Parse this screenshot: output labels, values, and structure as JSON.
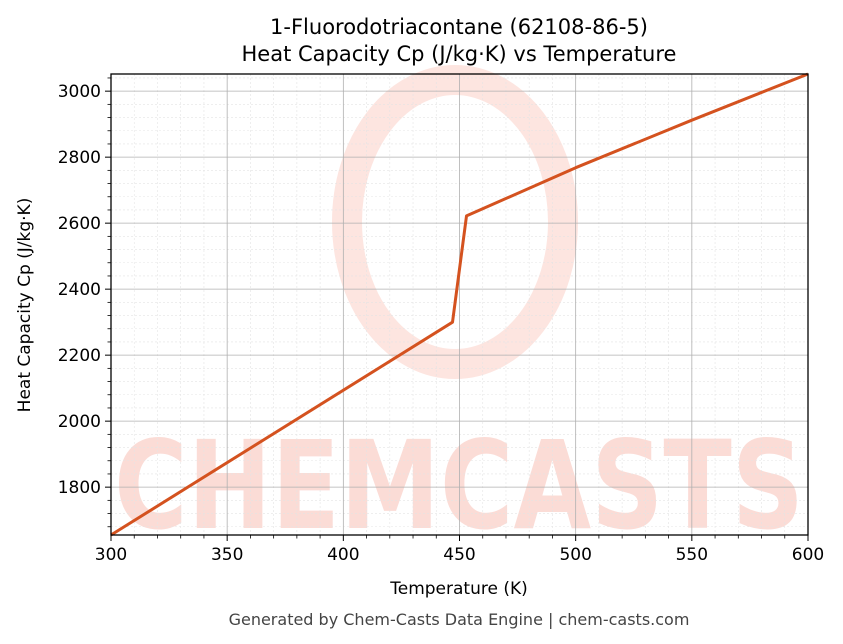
{
  "chart_data": {
    "type": "line",
    "title_line1": "1-Fluorodotriacontane (62108-86-5)",
    "title_line2": "Heat Capacity Cp (J/kg·K) vs Temperature",
    "xlabel": "Temperature (K)",
    "ylabel": "Heat Capacity Cp (J/kg·K)",
    "xlim": [
      300,
      600
    ],
    "ylim": [
      1655,
      3052
    ],
    "x_ticks": [
      300,
      350,
      400,
      450,
      500,
      550,
      600
    ],
    "y_ticks": [
      1800,
      2000,
      2200,
      2400,
      2600,
      2800,
      3000
    ],
    "grid": true,
    "series": [
      {
        "color": "#d4521f",
        "points": [
          [
            300,
            1655
          ],
          [
            447,
            2300
          ],
          [
            453,
            2622
          ],
          [
            500,
            2768
          ],
          [
            550,
            2912
          ],
          [
            600,
            3052
          ]
        ]
      }
    ]
  },
  "watermark": {
    "text": "CHEMCASTS",
    "color": "#fbd6d0"
  },
  "footer": "Generated by Chem-Casts Data Engine | chem-casts.com"
}
